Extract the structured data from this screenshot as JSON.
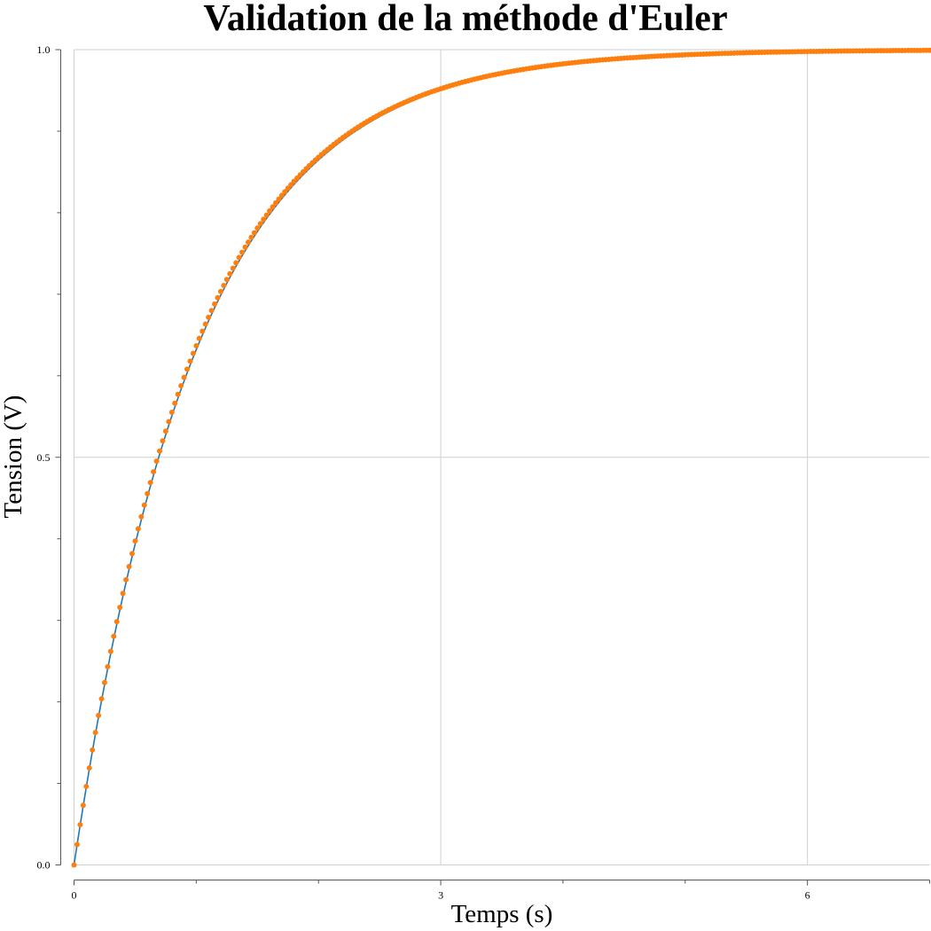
{
  "chart_data": {
    "type": "line",
    "title": "Validation de la méthode d'Euler",
    "xlabel": "Temps (s)",
    "ylabel": "Tension (V)",
    "xlim": [
      0,
      7
    ],
    "ylim": [
      0,
      1
    ],
    "x_ticks": [
      0,
      3,
      6
    ],
    "x_tick_labels": [
      "0",
      "3",
      "6"
    ],
    "x_minor_ticks": [
      1,
      2,
      4,
      5,
      7
    ],
    "y_ticks": [
      0,
      0.5,
      1
    ],
    "y_tick_labels": [
      "0.0",
      "0.5",
      "1.0"
    ],
    "y_minor_ticks": [
      0.1,
      0.2,
      0.3,
      0.4,
      0.6,
      0.7,
      0.8,
      0.9
    ],
    "grid": true,
    "colors": {
      "line_series": "#1f77b4",
      "marker_series": "#ff7f0e"
    },
    "series": [
      {
        "style": "line",
        "color": "#1f77b4",
        "function": "1 - exp(-t)",
        "x": [
          0,
          0.25,
          0.5,
          0.75,
          1,
          1.25,
          1.5,
          1.75,
          2,
          2.5,
          3,
          3.5,
          4,
          4.5,
          5,
          5.5,
          6,
          6.5,
          7
        ],
        "values": [
          0,
          0.221,
          0.393,
          0.528,
          0.632,
          0.713,
          0.777,
          0.826,
          0.865,
          0.918,
          0.95,
          0.97,
          0.982,
          0.989,
          0.993,
          0.996,
          0.998,
          0.998,
          0.999
        ]
      },
      {
        "style": "markers",
        "color": "#ff7f0e",
        "method": "euler",
        "step": 0.025,
        "x_range": [
          0,
          7
        ],
        "y0": 0
      }
    ]
  }
}
